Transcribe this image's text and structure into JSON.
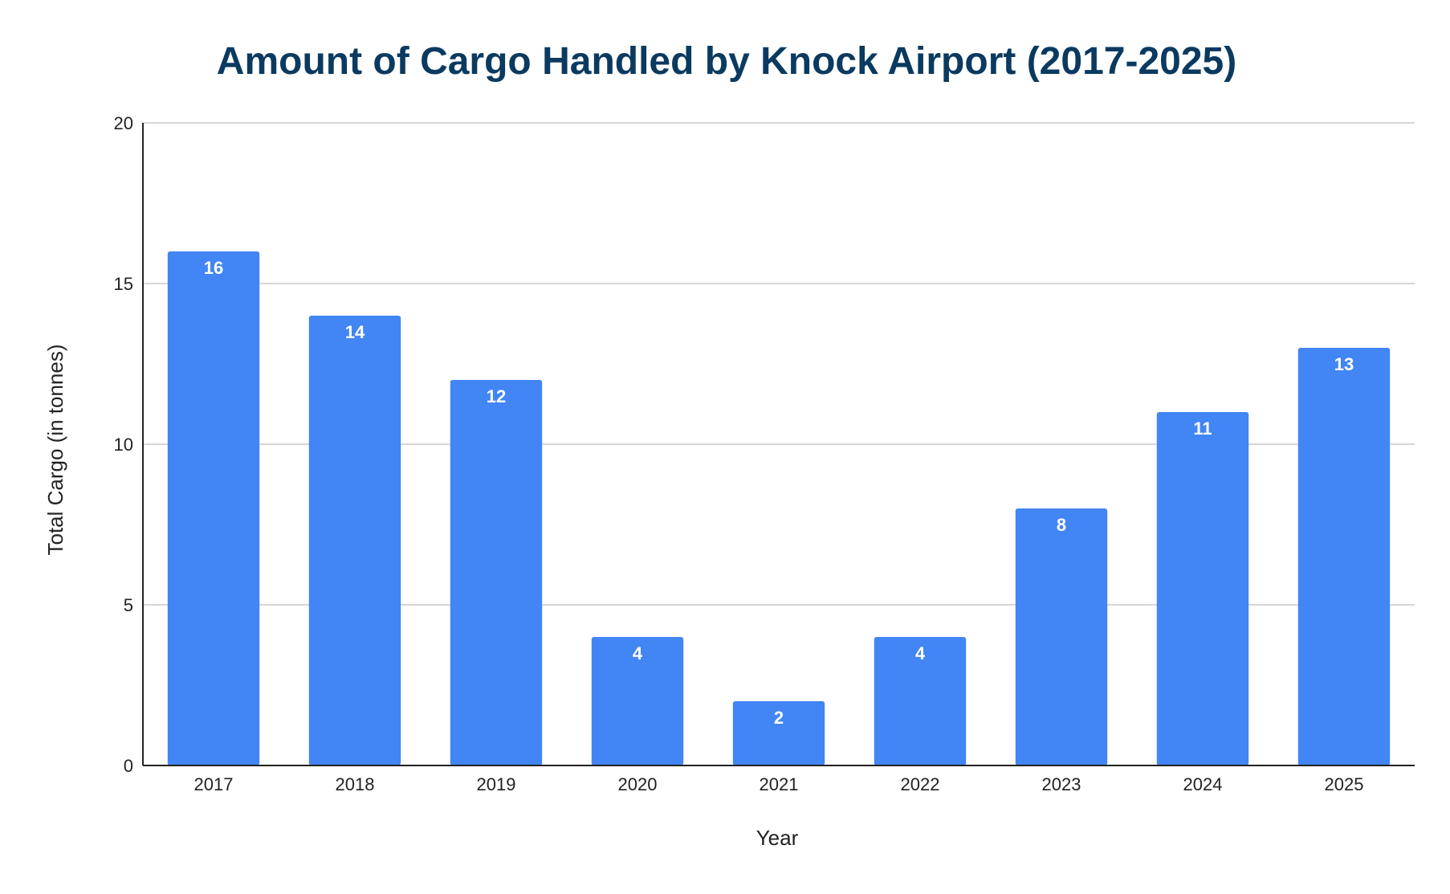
{
  "chart_data": {
    "type": "bar",
    "title": "Amount of Cargo Handled by Knock Airport (2017-2025)",
    "xlabel": "Year",
    "ylabel": "Total Cargo (in tonnes)",
    "categories": [
      "2017",
      "2018",
      "2019",
      "2020",
      "2021",
      "2022",
      "2023",
      "2024",
      "2025"
    ],
    "values": [
      16,
      14,
      12,
      4,
      2,
      4,
      8,
      11,
      13
    ],
    "ylim": [
      0,
      20
    ],
    "yticks": [
      0,
      5,
      10,
      15,
      20
    ],
    "grid": true,
    "legend": "none",
    "data_labels": "inside-top",
    "colors": {
      "bar": "#4285f4",
      "title": "#0b3a60",
      "grid": "#c8c8c8",
      "axis": "#222222",
      "data_label": "#ffffff"
    }
  }
}
